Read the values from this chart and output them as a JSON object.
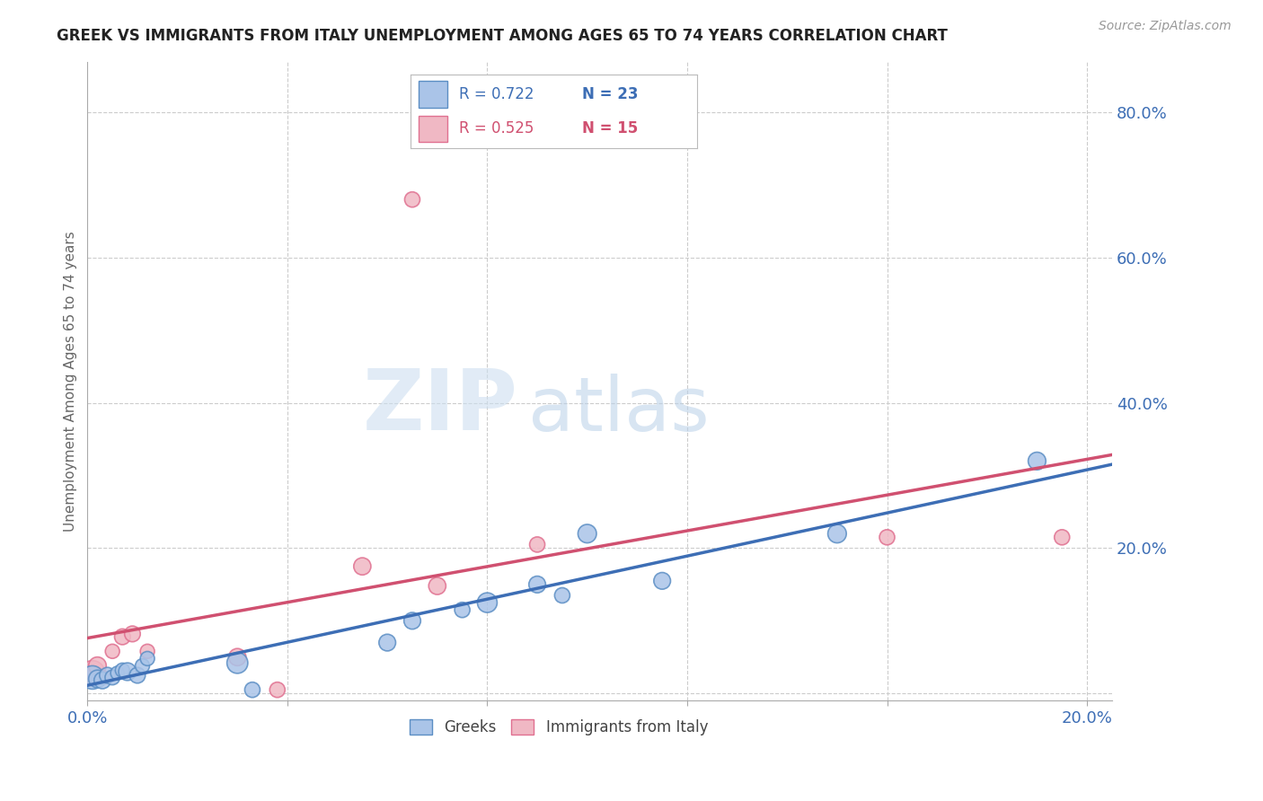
{
  "title": "GREEK VS IMMIGRANTS FROM ITALY UNEMPLOYMENT AMONG AGES 65 TO 74 YEARS CORRELATION CHART",
  "source": "Source: ZipAtlas.com",
  "ylabel": "Unemployment Among Ages 65 to 74 years",
  "xlim": [
    0.0,
    0.205
  ],
  "ylim": [
    -0.01,
    0.87
  ],
  "xticks": [
    0.0,
    0.04,
    0.08,
    0.12,
    0.16,
    0.2
  ],
  "xtick_labels": [
    "0.0%",
    "",
    "",
    "",
    "",
    "20.0%"
  ],
  "yticks_right": [
    0.0,
    0.2,
    0.4,
    0.6,
    0.8
  ],
  "ytick_labels_right": [
    "",
    "20.0%",
    "40.0%",
    "60.0%",
    "80.0%"
  ],
  "greek_color": "#aac4e8",
  "italy_color": "#f0b8c4",
  "greek_edge_color": "#5b8ec4",
  "italy_edge_color": "#e07090",
  "greek_line_color": "#3d6eb5",
  "italy_line_color": "#d05070",
  "legend_R_greek": "0.722",
  "legend_N_greek": "23",
  "legend_R_italy": "0.525",
  "legend_N_italy": "15",
  "legend_label_greek": "Greeks",
  "legend_label_italy": "Immigrants from Italy",
  "watermark_zip": "ZIP",
  "watermark_atlas": "atlas",
  "greek_x": [
    0.001,
    0.002,
    0.003,
    0.004,
    0.005,
    0.006,
    0.007,
    0.008,
    0.01,
    0.011,
    0.012,
    0.03,
    0.033,
    0.06,
    0.065,
    0.075,
    0.08,
    0.09,
    0.095,
    0.1,
    0.115,
    0.15,
    0.19
  ],
  "greek_y": [
    0.022,
    0.02,
    0.018,
    0.025,
    0.022,
    0.028,
    0.032,
    0.03,
    0.025,
    0.038,
    0.048,
    0.042,
    0.005,
    0.07,
    0.1,
    0.115,
    0.125,
    0.15,
    0.135,
    0.22,
    0.155,
    0.22,
    0.32
  ],
  "greek_size": [
    350,
    200,
    180,
    160,
    140,
    120,
    130,
    200,
    160,
    130,
    130,
    280,
    150,
    180,
    180,
    150,
    250,
    180,
    150,
    220,
    180,
    220,
    200
  ],
  "italy_x": [
    0.001,
    0.002,
    0.003,
    0.005,
    0.007,
    0.009,
    0.012,
    0.03,
    0.038,
    0.055,
    0.065,
    0.07,
    0.09,
    0.16,
    0.195
  ],
  "italy_y": [
    0.028,
    0.038,
    0.022,
    0.058,
    0.078,
    0.082,
    0.058,
    0.05,
    0.005,
    0.175,
    0.68,
    0.148,
    0.205,
    0.215,
    0.215
  ],
  "italy_size": [
    400,
    200,
    130,
    130,
    160,
    160,
    130,
    190,
    150,
    190,
    150,
    190,
    150,
    150,
    150
  ],
  "background_color": "#ffffff",
  "grid_color": "#cccccc"
}
